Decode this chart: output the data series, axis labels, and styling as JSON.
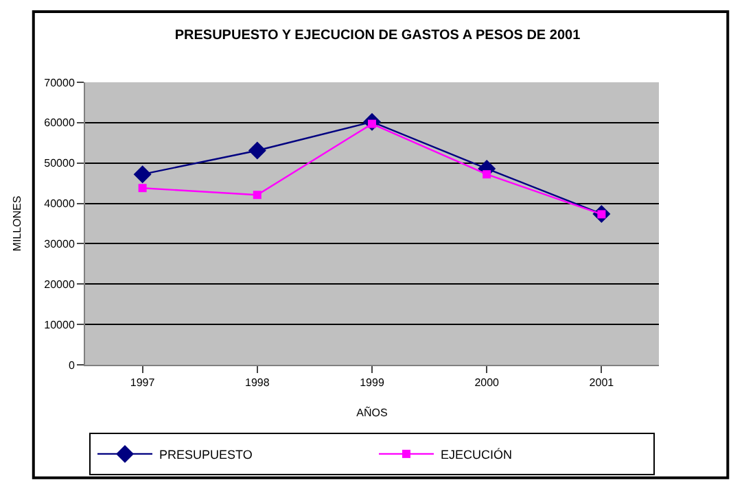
{
  "chart_data": {
    "type": "line",
    "title": "PRESUPUESTO Y EJECUCION DE GASTOS A PESOS DE 2001",
    "xlabel": "AÑOS",
    "ylabel": "MILLONES",
    "categories": [
      "1997",
      "1998",
      "1999",
      "2000",
      "2001"
    ],
    "series": [
      {
        "name": "PRESUPUESTO",
        "color": "#000080",
        "marker": "diamond",
        "values": [
          47200,
          53100,
          60200,
          48600,
          37400
        ]
      },
      {
        "name": "EJECUCIÓN",
        "color": "#ff00ff",
        "marker": "square",
        "values": [
          43800,
          42100,
          59700,
          47200,
          37300
        ]
      }
    ],
    "ylim": [
      0,
      70000
    ],
    "yticks": [
      0,
      10000,
      20000,
      30000,
      40000,
      50000,
      60000,
      70000
    ],
    "grid": "y",
    "legend": "bottom"
  }
}
